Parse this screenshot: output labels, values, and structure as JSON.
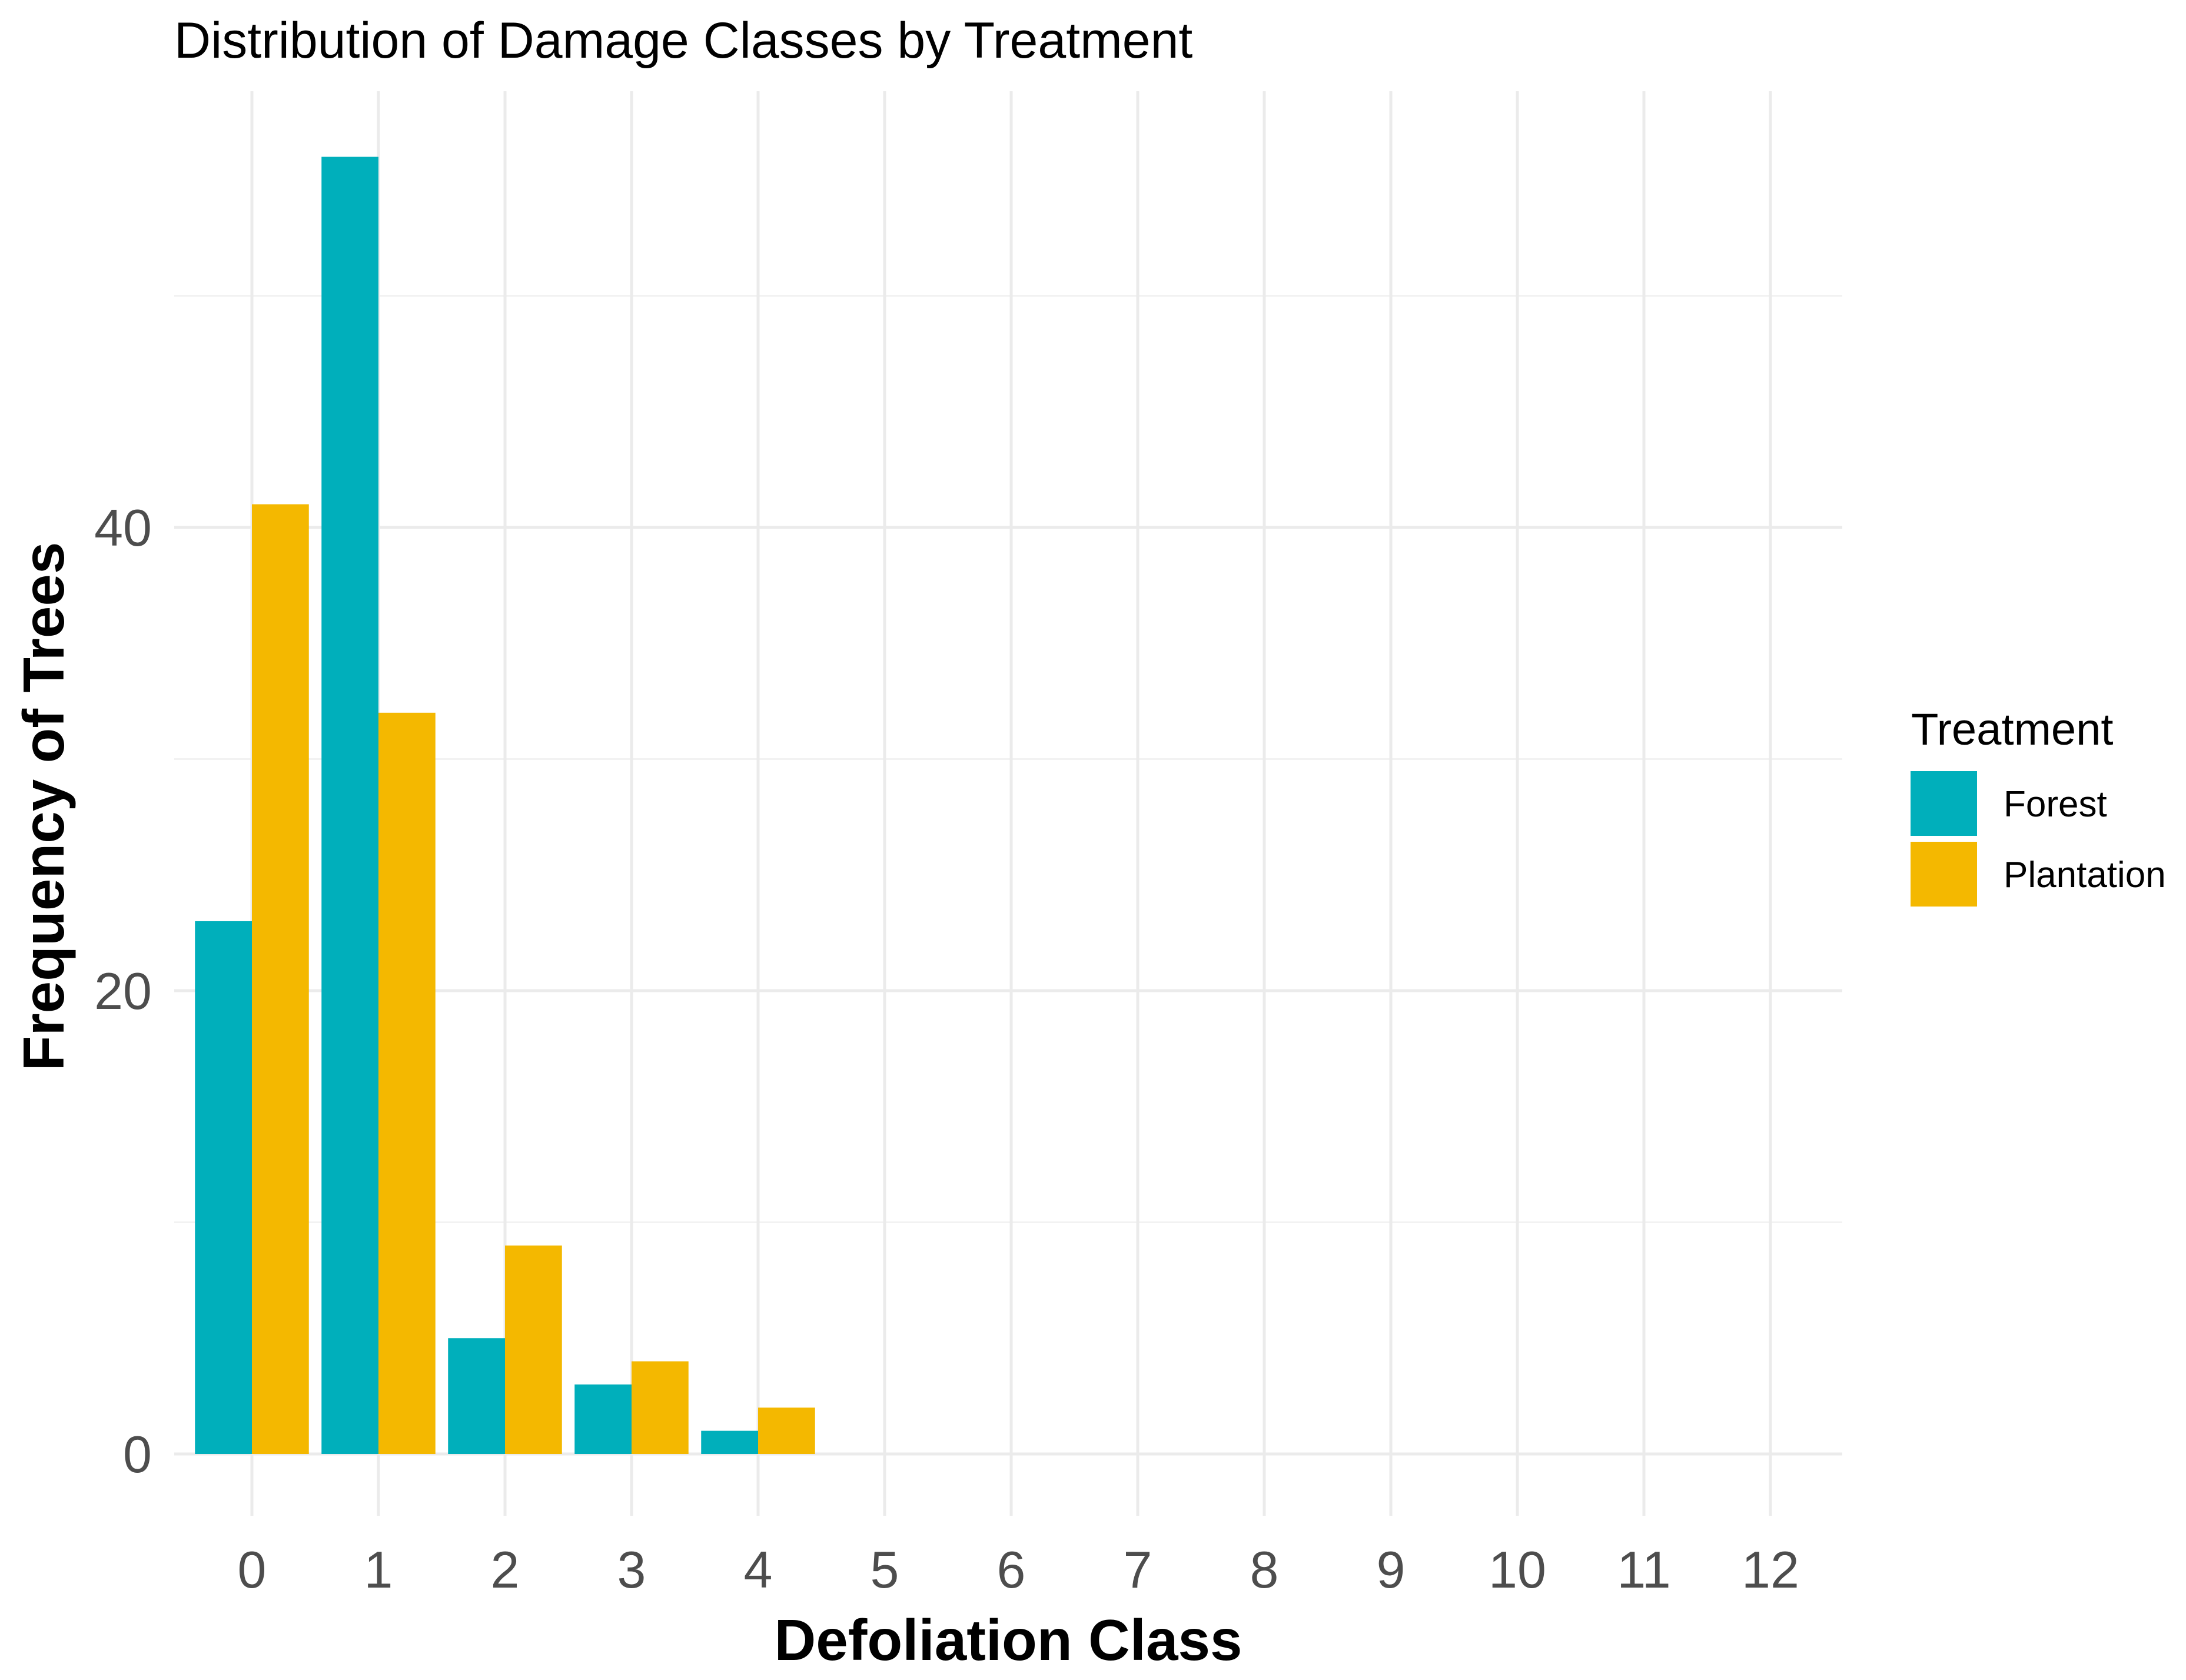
{
  "chart_data": {
    "type": "bar",
    "title": "Distribution of Damage Classes by Treatment",
    "xlabel": "Defoliation Class",
    "ylabel": "Frequency of Trees",
    "categories": [
      "0",
      "1",
      "2",
      "3",
      "4",
      "5",
      "6",
      "7",
      "8",
      "9",
      "10",
      "11",
      "12"
    ],
    "series": [
      {
        "name": "Forest",
        "color": "#00AFBB",
        "values": [
          23,
          56,
          5,
          3,
          1,
          0,
          0,
          0,
          0,
          0,
          0,
          0,
          0
        ]
      },
      {
        "name": "Plantation",
        "color": "#F4B800",
        "values": [
          41,
          32,
          9,
          4,
          2,
          0,
          0,
          0,
          0,
          0,
          0,
          0,
          0
        ]
      }
    ],
    "ylim": [
      -2,
      59
    ],
    "yticks": [
      0,
      20,
      40
    ],
    "y_minor_gridlines": [
      10,
      30,
      50
    ],
    "grid": true,
    "legend": {
      "title": "Treatment",
      "position": "right"
    }
  }
}
